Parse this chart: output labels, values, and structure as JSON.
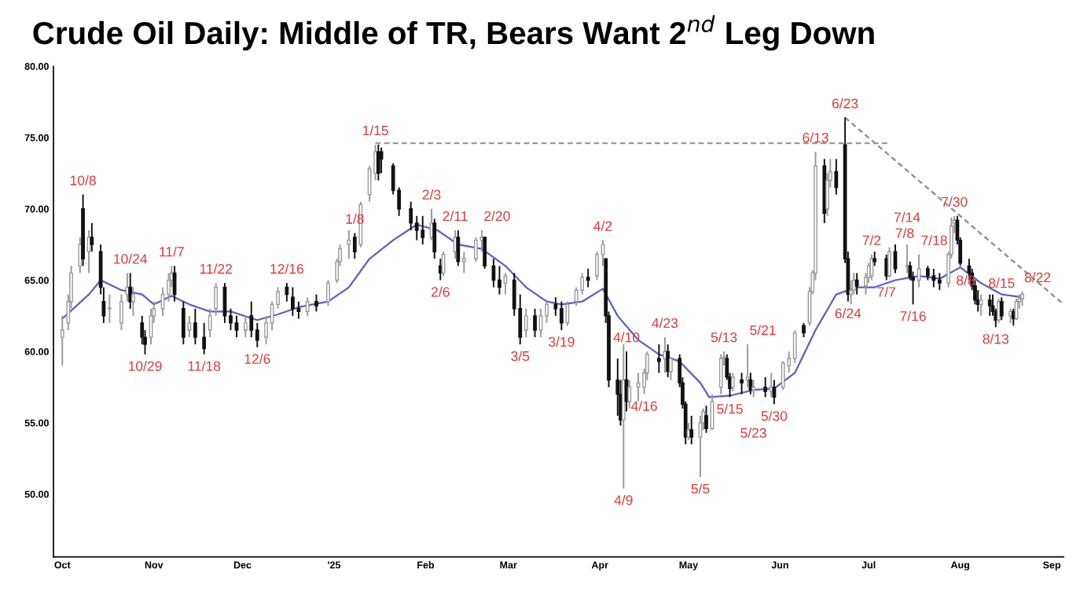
{
  "chart_data": {
    "type": "candlestick",
    "title": "Crude Oil Daily: Middle of TR, Bears Want 2$^{nd}$ Leg Down",
    "x": [
      "2024-10-01",
      "2024-10-03",
      "2024-10-04",
      "2024-10-07",
      "2024-10-08",
      "2024-10-10",
      "2024-10-11",
      "2024-10-14",
      "2024-10-15",
      "2024-10-17",
      "2024-10-21",
      "2024-10-23",
      "2024-10-24",
      "2024-10-25",
      "2024-10-28",
      "2024-10-29",
      "2024-10-31",
      "2024-11-01",
      "2024-11-04",
      "2024-11-06",
      "2024-11-07",
      "2024-11-08",
      "2024-11-11",
      "2024-11-13",
      "2024-11-15",
      "2024-11-18",
      "2024-11-20",
      "2024-11-22",
      "2024-11-25",
      "2024-11-27",
      "2024-11-29",
      "2024-12-02",
      "2024-12-04",
      "2024-12-06",
      "2024-12-09",
      "2024-12-11",
      "2024-12-13",
      "2024-12-16",
      "2024-12-18",
      "2024-12-20",
      "2024-12-23",
      "2024-12-26",
      "2024-12-30",
      "2025-01-02",
      "2025-01-03",
      "2025-01-06",
      "2025-01-08",
      "2025-01-10",
      "2025-01-13",
      "2025-01-15",
      "2025-01-16",
      "2025-01-17",
      "2025-01-21",
      "2025-01-23",
      "2025-01-27",
      "2025-01-29",
      "2025-01-31",
      "2025-02-03",
      "2025-02-04",
      "2025-02-06",
      "2025-02-07",
      "2025-02-11",
      "2025-02-12",
      "2025-02-14",
      "2025-02-18",
      "2025-02-20",
      "2025-02-21",
      "2025-02-24",
      "2025-02-26",
      "2025-02-28",
      "2025-03-03",
      "2025-03-05",
      "2025-03-07",
      "2025-03-10",
      "2025-03-12",
      "2025-03-14",
      "2025-03-17",
      "2025-03-19",
      "2025-03-21",
      "2025-03-24",
      "2025-03-26",
      "2025-03-28",
      "2025-03-31",
      "2025-04-02",
      "2025-04-03",
      "2025-04-04",
      "2025-04-07",
      "2025-04-08",
      "2025-04-09",
      "2025-04-10",
      "2025-04-11",
      "2025-04-14",
      "2025-04-16",
      "2025-04-17",
      "2025-04-21",
      "2025-04-23",
      "2025-04-24",
      "2025-04-25",
      "2025-04-28",
      "2025-04-29",
      "2025-04-30",
      "2025-05-01",
      "2025-05-02",
      "2025-05-05",
      "2025-05-06",
      "2025-05-07",
      "2025-05-09",
      "2025-05-12",
      "2025-05-13",
      "2025-05-14",
      "2025-05-15",
      "2025-05-16",
      "2025-05-19",
      "2025-05-21",
      "2025-05-22",
      "2025-05-23",
      "2025-05-27",
      "2025-05-29",
      "2025-05-30",
      "2025-06-02",
      "2025-06-04",
      "2025-06-06",
      "2025-06-09",
      "2025-06-11",
      "2025-06-12",
      "2025-06-13",
      "2025-06-16",
      "2025-06-17",
      "2025-06-18",
      "2025-06-20",
      "2025-06-23",
      "2025-06-24",
      "2025-06-25",
      "2025-06-26",
      "2025-06-27",
      "2025-06-30",
      "2025-07-01",
      "2025-07-02",
      "2025-07-03",
      "2025-07-07",
      "2025-07-08",
      "2025-07-10",
      "2025-07-14",
      "2025-07-15",
      "2025-07-16",
      "2025-07-18",
      "2025-07-21",
      "2025-07-23",
      "2025-07-25",
      "2025-07-28",
      "2025-07-29",
      "2025-07-30",
      "2025-07-31",
      "2025-08-01",
      "2025-08-04",
      "2025-08-05",
      "2025-08-06",
      "2025-08-07",
      "2025-08-08",
      "2025-08-11",
      "2025-08-12",
      "2025-08-13",
      "2025-08-14",
      "2025-08-15",
      "2025-08-18",
      "2025-08-19",
      "2025-08-20",
      "2025-08-21",
      "2025-08-22"
    ],
    "ohlc": [
      [
        61.0,
        62.5,
        59.0,
        61.5
      ],
      [
        62,
        64,
        61.5,
        63.5
      ],
      [
        63.5,
        66,
        63,
        65.5
      ],
      [
        66,
        68,
        65.5,
        67.5
      ],
      [
        70,
        71,
        66,
        66.5
      ],
      [
        67,
        68.5,
        65.5,
        68
      ],
      [
        68,
        69,
        67,
        67.5
      ],
      [
        67,
        67.5,
        64,
        64.5
      ],
      [
        63.5,
        64.5,
        62,
        62.5
      ],
      [
        63,
        64,
        62,
        63
      ],
      [
        62,
        64,
        61.5,
        63.5
      ],
      [
        64,
        65.5,
        63.5,
        64.5
      ],
      [
        64.5,
        65.5,
        63,
        63.5
      ],
      [
        63.5,
        64.5,
        62.5,
        64
      ],
      [
        62,
        62.5,
        60.5,
        61
      ],
      [
        61,
        61.5,
        59.8,
        60.5
      ],
      [
        61,
        63,
        60.5,
        62.5
      ],
      [
        62.5,
        63.5,
        62,
        63
      ],
      [
        63,
        64.5,
        62.5,
        64
      ],
      [
        64,
        65.5,
        63.5,
        65
      ],
      [
        65,
        66,
        64.5,
        65.5
      ],
      [
        65.5,
        66,
        63.5,
        64
      ],
      [
        63,
        63.5,
        60.5,
        61
      ],
      [
        61.5,
        62.5,
        61,
        62
      ],
      [
        62,
        63,
        60.5,
        61
      ],
      [
        61,
        62,
        59.8,
        60.2
      ],
      [
        61.5,
        63,
        61,
        62.5
      ],
      [
        63,
        64.8,
        62.5,
        64.5
      ],
      [
        64.5,
        64.8,
        62,
        62.5
      ],
      [
        62.5,
        63,
        61.5,
        62
      ],
      [
        62,
        62.5,
        61,
        61.5
      ],
      [
        61.5,
        62.5,
        61,
        62
      ],
      [
        62.5,
        63.5,
        61,
        61.5
      ],
      [
        61.5,
        62,
        60.3,
        60.8
      ],
      [
        61,
        62.5,
        60.5,
        62
      ],
      [
        62,
        63.5,
        61.5,
        63.3
      ],
      [
        63.3,
        64.5,
        63,
        64.2
      ],
      [
        64.5,
        64.8,
        63.5,
        64
      ],
      [
        63.8,
        64.5,
        62.5,
        63
      ],
      [
        63,
        63.5,
        62.3,
        62.8
      ],
      [
        62.8,
        63.8,
        62.5,
        63.5
      ],
      [
        63.5,
        64,
        62.8,
        63.2
      ],
      [
        63.5,
        65,
        63.2,
        64.8
      ],
      [
        65,
        66.5,
        64.8,
        66.3
      ],
      [
        66.3,
        67.5,
        66,
        67.2
      ],
      [
        67.5,
        68.5,
        66.5,
        67.8
      ],
      [
        68,
        68.3,
        66.5,
        67
      ],
      [
        67.5,
        70.5,
        67.3,
        70.3
      ],
      [
        71,
        73,
        70.5,
        72.8
      ],
      [
        72.5,
        74.5,
        72,
        74
      ],
      [
        74,
        74.5,
        72,
        72.5
      ],
      [
        74,
        74.3,
        72.5,
        73.5
      ],
      [
        73,
        73.2,
        71,
        71.3
      ],
      [
        71.3,
        71.5,
        69.5,
        70
      ],
      [
        70,
        70.5,
        68.5,
        69
      ],
      [
        69,
        69.5,
        67.8,
        68.5
      ],
      [
        68.5,
        69.5,
        67.5,
        68
      ],
      [
        68,
        70,
        67.8,
        69
      ],
      [
        69,
        69.3,
        66.5,
        67
      ],
      [
        66,
        66.5,
        65,
        65.5
      ],
      [
        65.5,
        67,
        65.3,
        66.8
      ],
      [
        67,
        68.5,
        66.5,
        68
      ],
      [
        68,
        68.5,
        66,
        66.3
      ],
      [
        66.3,
        67,
        65.5,
        66.5
      ],
      [
        66.5,
        68,
        66.3,
        67.8
      ],
      [
        67.8,
        68.5,
        67,
        68
      ],
      [
        68,
        68,
        65.8,
        66
      ],
      [
        66,
        66.5,
        64.5,
        65
      ],
      [
        65,
        66,
        64,
        64.5
      ],
      [
        64.8,
        65.5,
        64,
        65.3
      ],
      [
        65,
        65.5,
        62.5,
        63
      ],
      [
        63,
        64,
        60.5,
        61
      ],
      [
        61.5,
        63,
        61,
        62.5
      ],
      [
        62.5,
        63,
        61,
        61.5
      ],
      [
        61.5,
        63,
        61,
        62.5
      ],
      [
        62.5,
        63.5,
        62,
        63.3
      ],
      [
        63.3,
        63.8,
        62.5,
        63
      ],
      [
        63,
        63.5,
        61.5,
        62
      ],
      [
        62,
        63.5,
        61.8,
        63.3
      ],
      [
        63.5,
        64.5,
        63.2,
        64.3
      ],
      [
        64.3,
        65.5,
        64,
        65.2
      ],
      [
        65.2,
        65.8,
        64.5,
        65
      ],
      [
        65.3,
        67,
        65,
        66.8
      ],
      [
        66.8,
        67.8,
        66,
        67.5
      ],
      [
        66.5,
        66.5,
        62,
        62.5
      ],
      [
        62.5,
        62.8,
        57.5,
        58
      ],
      [
        58,
        59.5,
        55.5,
        57
      ],
      [
        57,
        58,
        54.8,
        55.2
      ],
      [
        55.2,
        60.5,
        50.4,
        58
      ],
      [
        58,
        60,
        55.8,
        56.5
      ],
      [
        56.5,
        58,
        56,
        57.5
      ],
      [
        57.5,
        58.5,
        56.5,
        57.8
      ],
      [
        57.5,
        58.8,
        57,
        58.5
      ],
      [
        58.5,
        60,
        58,
        59.8
      ],
      [
        59.5,
        60.5,
        58.5,
        59.3
      ],
      [
        59.5,
        61,
        58.5,
        60
      ],
      [
        60,
        60.5,
        58.2,
        58.6
      ],
      [
        58.6,
        59.6,
        58,
        59.5
      ],
      [
        59.5,
        59.8,
        57.5,
        57.8
      ],
      [
        57.8,
        58.2,
        56,
        56.3
      ],
      [
        56.3,
        56.5,
        53.5,
        54
      ],
      [
        54,
        55,
        53.8,
        54.5
      ],
      [
        54.5,
        55.5,
        53.5,
        54
      ],
      [
        54,
        55.5,
        51.2,
        55
      ],
      [
        55,
        56,
        54.5,
        55.8
      ],
      [
        55.5,
        56.2,
        54.3,
        54.6
      ],
      [
        54.6,
        57,
        54.5,
        56.5
      ],
      [
        57.5,
        59.8,
        57,
        59.5
      ],
      [
        59.5,
        60,
        59,
        59.6
      ],
      [
        59.5,
        59.8,
        58,
        58.2
      ],
      [
        58.2,
        58.5,
        56.8,
        57.4
      ],
      [
        57.5,
        58.5,
        57.2,
        58.2
      ],
      [
        58,
        58.5,
        57,
        57.8
      ],
      [
        58,
        60.5,
        57.5,
        58.2
      ],
      [
        58,
        58.5,
        57,
        57.3
      ],
      [
        57.3,
        58,
        56.8,
        57.5
      ],
      [
        57.5,
        58.2,
        56.8,
        57.2
      ],
      [
        57.2,
        58.5,
        56.8,
        57.5
      ],
      [
        57.5,
        58,
        56.3,
        56.8
      ],
      [
        57.5,
        59.3,
        57.3,
        59.2
      ],
      [
        59,
        60,
        58.5,
        59.5
      ],
      [
        59.5,
        61.5,
        59.2,
        61.3
      ],
      [
        61.8,
        62,
        61,
        61.3
      ],
      [
        62,
        64.5,
        61.8,
        64.2
      ],
      [
        64.2,
        65.7,
        64,
        65.5
      ],
      [
        65.5,
        74,
        65,
        73
      ],
      [
        73,
        73.5,
        69,
        69.7
      ],
      [
        70,
        72.5,
        69.5,
        72
      ],
      [
        72,
        73.5,
        71.5,
        72.6
      ],
      [
        72.6,
        73.5,
        71,
        71.5
      ],
      [
        74.5,
        76.4,
        66.2,
        66.5
      ],
      [
        66.5,
        67,
        63.5,
        64
      ],
      [
        64,
        65,
        63.3,
        64.3
      ],
      [
        64.3,
        65.5,
        64,
        65
      ],
      [
        65,
        65.5,
        64,
        64.6
      ],
      [
        64.6,
        65.5,
        64,
        65.2
      ],
      [
        65.2,
        66.2,
        64.8,
        66
      ],
      [
        65.3,
        66.8,
        65,
        66.5
      ],
      [
        66.5,
        67,
        66,
        66.3
      ],
      [
        66.5,
        66.8,
        65,
        65.3
      ],
      [
        65.3,
        67.3,
        65.2,
        67
      ],
      [
        67,
        67.5,
        65.5,
        65.8
      ],
      [
        66,
        67.5,
        65.5,
        66
      ],
      [
        66,
        66.3,
        65,
        65.2
      ],
      [
        65.2,
        65.6,
        63.3,
        65
      ],
      [
        65,
        66.8,
        64.5,
        65.8
      ],
      [
        65.8,
        66,
        65,
        65.3
      ],
      [
        65.3,
        65.8,
        64.5,
        65
      ],
      [
        65,
        65.5,
        64.3,
        64.8
      ],
      [
        64.8,
        67,
        64.5,
        66.8
      ],
      [
        66.8,
        69.4,
        66.5,
        68.8
      ],
      [
        69,
        69.5,
        68.3,
        69.2
      ],
      [
        69.2,
        69.5,
        67.5,
        67.8
      ],
      [
        67.8,
        68,
        66,
        66.2
      ],
      [
        66,
        66.5,
        65,
        65.5
      ],
      [
        65.5,
        65.8,
        64.3,
        64.6
      ],
      [
        64.6,
        65,
        63.3,
        63.6
      ],
      [
        63.6,
        64.3,
        62.8,
        63.3
      ],
      [
        63.3,
        64,
        62.5,
        63.6
      ],
      [
        63.6,
        64,
        62.5,
        63.2
      ],
      [
        63.2,
        64,
        62.5,
        62.8
      ],
      [
        62.8,
        63,
        61.7,
        62.2
      ],
      [
        62.2,
        63.7,
        62,
        63.5
      ],
      [
        63.5,
        63.8,
        62.2,
        62.5
      ],
      [
        62.5,
        63,
        62,
        62.8
      ],
      [
        62.8,
        63,
        61.8,
        62.3
      ],
      [
        62.3,
        63.7,
        62.2,
        63.5
      ],
      [
        63.5,
        64,
        63,
        63.7
      ],
      [
        63.7,
        64.2,
        63.2,
        64
      ]
    ],
    "series": [
      {
        "type": "line",
        "color": "#5a5fc8",
        "line_style": "solid",
        "x": [
          "2024-10-01",
          "2024-10-10",
          "2024-10-14",
          "2024-10-21",
          "2024-10-28",
          "2024-11-01",
          "2024-11-07",
          "2024-11-13",
          "2024-11-20",
          "2024-11-27",
          "2024-12-06",
          "2024-12-13",
          "2024-12-20",
          "2024-12-30",
          "2025-01-06",
          "2025-01-13",
          "2025-01-21",
          "2025-01-29",
          "2025-02-05",
          "2025-02-12",
          "2025-02-20",
          "2025-02-28",
          "2025-03-07",
          "2025-03-14",
          "2025-03-19",
          "2025-03-26",
          "2025-04-02",
          "2025-04-07",
          "2025-04-14",
          "2025-04-21",
          "2025-04-28",
          "2025-05-05",
          "2025-05-08",
          "2025-05-15",
          "2025-05-23",
          "2025-05-30",
          "2025-06-06",
          "2025-06-13",
          "2025-06-20",
          "2025-06-27",
          "2025-07-03",
          "2025-07-10",
          "2025-07-18",
          "2025-07-25",
          "2025-08-01",
          "2025-08-08",
          "2025-08-15",
          "2025-08-22"
        ],
        "values": [
          62.3,
          64,
          65,
          64.3,
          64,
          63.3,
          63.9,
          63.3,
          62.8,
          62.8,
          62.2,
          62.6,
          63.1,
          63.5,
          64.5,
          66.5,
          67.8,
          68.9,
          68.5,
          67.5,
          67.2,
          66,
          64.5,
          63.5,
          63.3,
          63.5,
          64.4,
          62.5,
          60.8,
          59.8,
          59.3,
          57.8,
          56.8,
          56.9,
          57.3,
          57.4,
          58.5,
          61.5,
          64,
          64.5,
          64.5,
          65,
          65.3,
          65.1,
          65.9,
          64.8,
          64,
          63.8
        ]
      },
      {
        "type": "line",
        "color": "#8c8c8c",
        "line_style": "dashed",
        "x": [
          "2025-01-15",
          "2025-07-08"
        ],
        "values": [
          74.6,
          74.6
        ]
      },
      {
        "type": "line",
        "color": "#8c8c8c",
        "line_style": "dashed",
        "x": [
          "2025-06-23",
          "2025-09-05"
        ],
        "values": [
          76.4,
          63.3
        ]
      }
    ],
    "annotations": [
      {
        "text": "10/8",
        "x": "2024-10-08",
        "y": 71
      },
      {
        "text": "10/24",
        "x": "2024-10-24",
        "y": 65.5
      },
      {
        "text": "11/7",
        "x": "2024-11-07",
        "y": 66
      },
      {
        "text": "11/22",
        "x": "2024-11-22",
        "y": 64.8
      },
      {
        "text": "12/16",
        "x": "2024-12-16",
        "y": 64.8
      },
      {
        "text": "1/8",
        "x": "2025-01-08",
        "y": 68.3
      },
      {
        "text": "1/15",
        "x": "2025-01-15",
        "y": 74.5
      },
      {
        "text": "10/29",
        "x": "2024-10-29",
        "y": 59.8
      },
      {
        "text": "11/18",
        "x": "2024-11-18",
        "y": 59.8
      },
      {
        "text": "12/6",
        "x": "2024-12-06",
        "y": 60.3
      },
      {
        "text": "2/3",
        "x": "2025-02-03",
        "y": 70
      },
      {
        "text": "2/11",
        "x": "2025-02-11",
        "y": 68.5
      },
      {
        "text": "2/20",
        "x": "2025-02-20",
        "y": 68.5
      },
      {
        "text": "2/6",
        "x": "2025-02-06",
        "y": 65
      },
      {
        "text": "3/5",
        "x": "2025-03-05",
        "y": 60.5
      },
      {
        "text": "3/19",
        "x": "2025-03-19",
        "y": 61.5
      },
      {
        "text": "4/2",
        "x": "2025-04-02",
        "y": 67.8
      },
      {
        "text": "4/23",
        "x": "2025-04-23",
        "y": 61
      },
      {
        "text": "4/10",
        "x": "2025-04-10",
        "y": 60
      },
      {
        "text": "4/16",
        "x": "2025-04-16",
        "y": 57
      },
      {
        "text": "4/9",
        "x": "2025-04-09",
        "y": 50.4
      },
      {
        "text": "5/5",
        "x": "2025-05-05",
        "y": 51.2
      },
      {
        "text": "5/13",
        "x": "2025-05-13",
        "y": 60
      },
      {
        "text": "5/21",
        "x": "2025-05-21",
        "y": 60.5
      },
      {
        "text": "5/15",
        "x": "2025-05-15",
        "y": 56.8
      },
      {
        "text": "5/30",
        "x": "2025-05-30",
        "y": 56.3
      },
      {
        "text": "5/23",
        "x": "2025-05-23",
        "y": 56.8
      },
      {
        "text": "6/23",
        "x": "2025-06-23",
        "y": 76.4
      },
      {
        "text": "6/13",
        "x": "2025-06-13",
        "y": 74
      },
      {
        "text": "6/24",
        "x": "2025-06-24",
        "y": 63.5
      },
      {
        "text": "7/2",
        "x": "2025-07-02",
        "y": 66.8
      },
      {
        "text": "7/8",
        "x": "2025-07-08",
        "y": 67.3
      },
      {
        "text": "7/14",
        "x": "2025-07-14",
        "y": 67.5
      },
      {
        "text": "7/18",
        "x": "2025-07-18",
        "y": 66.8
      },
      {
        "text": "7/7",
        "x": "2025-07-07",
        "y": 65
      },
      {
        "text": "7/16",
        "x": "2025-07-16",
        "y": 63.3
      },
      {
        "text": "7/30",
        "x": "2025-07-30",
        "y": 69.5
      },
      {
        "text": "8/15",
        "x": "2025-08-15",
        "y": 63.8
      },
      {
        "text": "8/8",
        "x": "2025-08-08",
        "y": 64
      },
      {
        "text": "8/22",
        "x": "2025-08-22",
        "y": 64.2
      },
      {
        "text": "8/13",
        "x": "2025-08-13",
        "y": 61.7
      }
    ],
    "xlim": [
      "2024-09-28",
      "2025-09-05"
    ],
    "xticks": [
      {
        "value": "2024-10-01",
        "label": "Oct"
      },
      {
        "value": "2024-11-01",
        "label": "Nov"
      },
      {
        "value": "2024-12-01",
        "label": "Dec"
      },
      {
        "value": "2025-01-01",
        "label": "'25"
      },
      {
        "value": "2025-02-01",
        "label": "Feb"
      },
      {
        "value": "2025-03-01",
        "label": "Mar"
      },
      {
        "value": "2025-04-01",
        "label": "Apr"
      },
      {
        "value": "2025-05-01",
        "label": "May"
      },
      {
        "value": "2025-06-01",
        "label": "Jun"
      },
      {
        "value": "2025-07-01",
        "label": "Jul"
      },
      {
        "value": "2025-08-01",
        "label": "Aug"
      },
      {
        "value": "2025-09-01",
        "label": "Sep"
      }
    ],
    "ylim": [
      45.6,
      80
    ],
    "yticks": [
      {
        "value": 50,
        "label": "50.00"
      },
      {
        "value": 55,
        "label": "55.00"
      },
      {
        "value": 60,
        "label": "60.00"
      },
      {
        "value": 65,
        "label": "65.00"
      },
      {
        "value": 70,
        "label": "70.00"
      },
      {
        "value": 75,
        "label": "75.00"
      },
      {
        "value": 80,
        "label": "80.00"
      }
    ],
    "grid": false,
    "legend": false
  }
}
